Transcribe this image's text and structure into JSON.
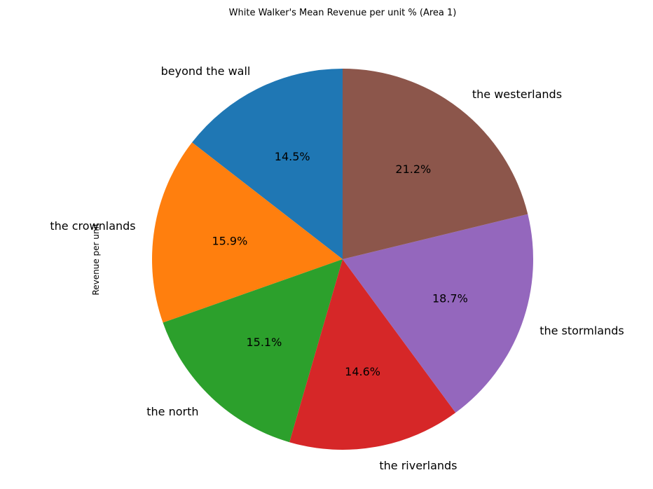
{
  "chart_data": {
    "type": "pie",
    "title": "White Walker's Mean Revenue per unit % (Area 1)",
    "ylabel": "Revenue per unit",
    "start_angle_deg": 90,
    "direction": "counterclockwise",
    "slices": [
      {
        "label": "beyond the wall",
        "value": 14.5,
        "pct_label": "14.5%",
        "color": "#1f77b4"
      },
      {
        "label": "the crownlands",
        "value": 15.9,
        "pct_label": "15.9%",
        "color": "#ff7f0e"
      },
      {
        "label": "the north",
        "value": 15.1,
        "pct_label": "15.1%",
        "color": "#2ca02c"
      },
      {
        "label": "the riverlands",
        "value": 14.6,
        "pct_label": "14.6%",
        "color": "#d62728"
      },
      {
        "label": "the stormlands",
        "value": 18.7,
        "pct_label": "18.7%",
        "color": "#9467bd"
      },
      {
        "label": "the westerlands",
        "value": 21.2,
        "pct_label": "21.2%",
        "color": "#8c564b"
      }
    ]
  }
}
